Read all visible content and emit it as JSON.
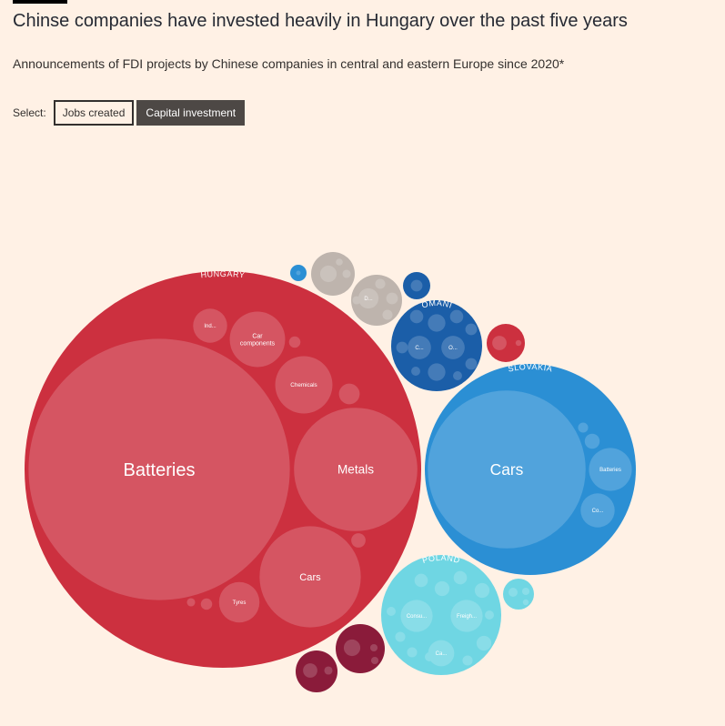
{
  "header": {
    "title": "Chinse companies have invested heavily in Hungary over the past five years",
    "subtitle": "Announcements of FDI projects by Chinese companies in central and eastern Europe since 2020*"
  },
  "controls": {
    "select_label": "Select:",
    "options": [
      {
        "label": "Jobs created",
        "active": false
      },
      {
        "label": "Capital investment",
        "active": true
      }
    ]
  },
  "chart_data": {
    "type": "packed-bubble",
    "measure": "Capital investment",
    "groups": [
      {
        "name": "HUNGARY",
        "label": "HUNGARY",
        "color": "#cc303f",
        "sectors": [
          {
            "name": "Batteries",
            "label": "Batteries",
            "value": 100
          },
          {
            "name": "Metals",
            "label": "Metals",
            "value": 22.3
          },
          {
            "name": "Cars",
            "label": "Cars",
            "value": 15.0
          },
          {
            "name": "Chemicals",
            "label": "Chemicals",
            "value": 4.8
          },
          {
            "name": "Car components",
            "label": "Car components",
            "value": 4.5
          },
          {
            "name": "Tyres",
            "label": "Tyres",
            "value": 2.4
          },
          {
            "name": "Ind",
            "label": "Ind...",
            "value": 1.7
          },
          {
            "name": "s8",
            "label": "",
            "value": 0.63
          },
          {
            "name": "s9",
            "label": "",
            "value": 0.3
          },
          {
            "name": "s10",
            "label": "",
            "value": 0.19
          },
          {
            "name": "s11",
            "label": "",
            "value": 0.19
          },
          {
            "name": "s12",
            "label": "",
            "value": 0.1
          }
        ]
      },
      {
        "name": "SLOVAKIA",
        "label": "SLOVAKIA",
        "color": "#2b8fd4",
        "sectors": [
          {
            "name": "Cars",
            "label": "Cars",
            "value": 36.5
          },
          {
            "name": "Batteries",
            "label": "Batteries",
            "value": 2.7
          },
          {
            "name": "Co",
            "label": "Co...",
            "value": 1.7
          },
          {
            "name": "s4",
            "label": "",
            "value": 0.33
          },
          {
            "name": "s5",
            "label": "",
            "value": 0.15
          }
        ]
      },
      {
        "name": "POLAND",
        "label": "POLAND",
        "color": "#6fd6e3",
        "sectors": [
          {
            "name": "Consumer",
            "label": "Consu...",
            "value": 1.5
          },
          {
            "name": "Freight",
            "label": "Freigh...",
            "value": 1.5
          },
          {
            "name": "Ca",
            "label": "Ca...",
            "value": 1.0
          },
          {
            "name": "s4",
            "label": "",
            "value": 0.32
          },
          {
            "name": "s5",
            "label": "",
            "value": 0.32
          },
          {
            "name": "s6",
            "label": "",
            "value": 0.32
          },
          {
            "name": "s7",
            "label": "",
            "value": 0.26
          },
          {
            "name": "s8",
            "label": "",
            "value": 0.26
          },
          {
            "name": "s9",
            "label": "",
            "value": 0.15
          },
          {
            "name": "s10",
            "label": "",
            "value": 0.15
          },
          {
            "name": "s11",
            "label": "",
            "value": 0.15
          },
          {
            "name": "s12",
            "label": "",
            "value": 0.12
          },
          {
            "name": "s13",
            "label": "",
            "value": 0.12
          },
          {
            "name": "s14",
            "label": "",
            "value": 0.12
          }
        ]
      },
      {
        "name": "ROMANIA",
        "label": "ROMANIA",
        "color": "#1b5ea8",
        "sectors": [
          {
            "name": "C",
            "label": "C...",
            "value": 0.8
          },
          {
            "name": "O",
            "label": "O...",
            "value": 0.8
          },
          {
            "name": "s3",
            "label": "",
            "value": 0.45
          },
          {
            "name": "s4",
            "label": "",
            "value": 0.45
          },
          {
            "name": "s5",
            "label": "",
            "value": 0.26
          },
          {
            "name": "s6",
            "label": "",
            "value": 0.26
          },
          {
            "name": "s7",
            "label": "",
            "value": 0.2
          },
          {
            "name": "s8",
            "label": "",
            "value": 0.2
          },
          {
            "name": "s9",
            "label": "",
            "value": 0.2
          },
          {
            "name": "s10",
            "label": "",
            "value": 0.12
          },
          {
            "name": "s11",
            "label": "",
            "value": 0.12
          }
        ]
      },
      {
        "name": "unlabelled-grey-large",
        "label": "",
        "color": "#beb4ad",
        "sectors": [
          {
            "name": "D",
            "label": "D...",
            "value": 0.6
          },
          {
            "name": "s2",
            "label": "",
            "value": 0.2
          },
          {
            "name": "s3",
            "label": "",
            "value": 0.15
          },
          {
            "name": "s4",
            "label": "",
            "value": 0.15
          },
          {
            "name": "s5",
            "label": "",
            "value": 0.1
          }
        ]
      },
      {
        "name": "unlabelled-grey-small",
        "label": "",
        "color": "#beb4ad",
        "sectors": [
          {
            "name": "s1",
            "label": "",
            "value": 0.4
          },
          {
            "name": "s2",
            "label": "",
            "value": 0.1
          },
          {
            "name": "s3",
            "label": "",
            "value": 0.07
          }
        ]
      },
      {
        "name": "unlabelled-maroon-a",
        "label": "",
        "color": "#8a1b3a",
        "sectors": [
          {
            "name": "s1",
            "label": "",
            "value": 0.4
          },
          {
            "name": "s2",
            "label": "",
            "value": 0.08
          },
          {
            "name": "s3",
            "label": "",
            "value": 0.08
          }
        ]
      },
      {
        "name": "unlabelled-maroon-b",
        "label": "",
        "color": "#8a1b3a",
        "sectors": [
          {
            "name": "s1",
            "label": "",
            "value": 0.3
          },
          {
            "name": "s2",
            "label": "",
            "value": 0.1
          }
        ]
      },
      {
        "name": "unlabelled-red-small",
        "label": "",
        "color": "#cc303f",
        "sectors": [
          {
            "name": "s1",
            "label": "",
            "value": 0.3
          },
          {
            "name": "s2",
            "label": "",
            "value": 0.05
          }
        ]
      },
      {
        "name": "unlabelled-cyan-small",
        "label": "",
        "color": "#6fd6e3",
        "sectors": [
          {
            "name": "s1",
            "label": "",
            "value": 0.12
          },
          {
            "name": "s2",
            "label": "",
            "value": 0.08
          },
          {
            "name": "s3",
            "label": "",
            "value": 0.05
          }
        ]
      },
      {
        "name": "unlabelled-navy-small",
        "label": "",
        "color": "#1b5ea8",
        "sectors": [
          {
            "name": "s1",
            "label": "",
            "value": 0.2
          }
        ]
      },
      {
        "name": "unlabelled-blue-tiny",
        "label": "",
        "color": "#2b8fd4",
        "sectors": [
          {
            "name": "s1",
            "label": "",
            "value": 0.03
          }
        ]
      }
    ]
  }
}
